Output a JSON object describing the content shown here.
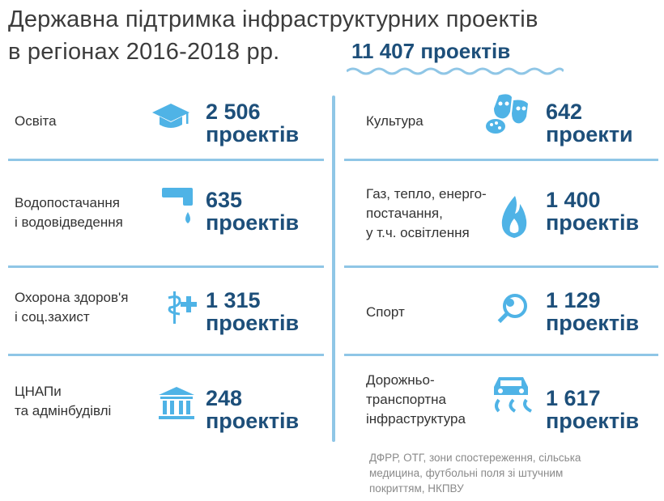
{
  "title": {
    "line1": "Державна підтримка інфраструктурних проектів",
    "line2": "в регіонах 2016-2018 рр.",
    "total": "11 407 проектів"
  },
  "items": [
    {
      "label_lines": [
        "Освіта"
      ],
      "number": "2 506",
      "unit": "проектів",
      "icon": "graduation-cap-icon"
    },
    {
      "label_lines": [
        "Культура"
      ],
      "number": "642",
      "unit": "проекти",
      "icon": "theater-masks-icon"
    },
    {
      "label_lines": [
        "Водопостачання",
        "і водовідведення"
      ],
      "number": "635",
      "unit": "проектів",
      "icon": "water-tap-icon"
    },
    {
      "label_lines": [
        "Газ, тепло, енерго-",
        "постачання,",
        "у т.ч. освітлення"
      ],
      "number": "1 400",
      "unit": "проектів",
      "icon": "flame-icon"
    },
    {
      "label_lines": [
        "Охорона здоров'я",
        "і соц.захист"
      ],
      "number": "1 315",
      "unit": "проектів",
      "icon": "medical-cross-icon"
    },
    {
      "label_lines": [
        "Спорт"
      ],
      "number": "1 129",
      "unit": "проектів",
      "icon": "sport-ball-racket-icon"
    },
    {
      "label_lines": [
        "ЦНАПи",
        "та адмінбудівлі"
      ],
      "number": "248",
      "unit": "проектів",
      "icon": "government-building-icon"
    },
    {
      "label_lines": [
        "Дорожньо-",
        "транспортна",
        "інфраструктура"
      ],
      "number": "1 617",
      "unit": "проектів",
      "icon": "car-road-icon"
    }
  ],
  "footnote": {
    "lines": [
      "ДФРР, ОТГ, зони спостереження, сільська",
      "медицина, футбольні поля зі штучним",
      "покриттям, НКПВУ"
    ]
  },
  "colors": {
    "accent_dark": "#1d4f7a",
    "accent_light": "#4fb3e6",
    "divider": "#8fc6e6"
  }
}
